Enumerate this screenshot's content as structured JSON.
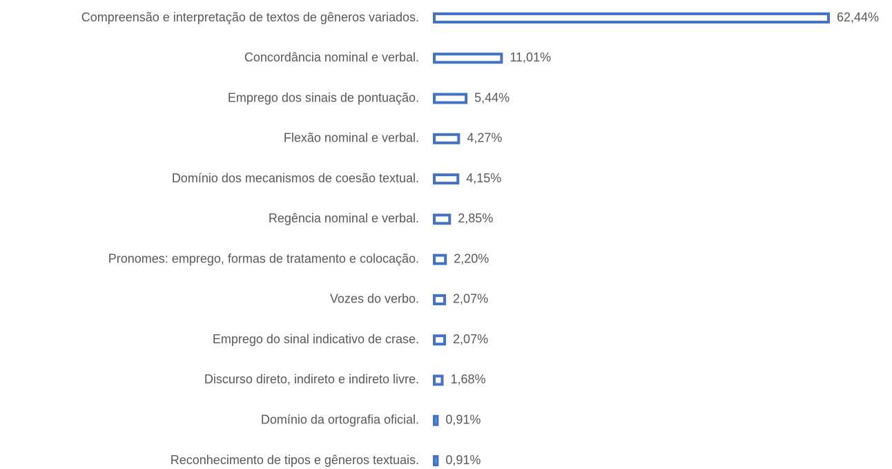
{
  "chart_data": {
    "type": "bar",
    "orientation": "horizontal",
    "categories": [
      "Compreensão e interpretação de textos de gêneros variados.",
      "Concordância nominal e verbal.",
      "Emprego dos sinais de pontuação.",
      "Flexão nominal e verbal.",
      "Domínio dos mecanismos de coesão textual.",
      "Regência nominal e verbal.",
      "Pronomes: emprego, formas de tratamento e colocação.",
      "Vozes do verbo.",
      "Emprego do sinal indicativo de crase.",
      "Discurso direto, indireto e indireto livre.",
      "Domínio da ortografia oficial.",
      "Reconhecimento de tipos e gêneros textuais."
    ],
    "values": [
      62.44,
      11.01,
      5.44,
      4.27,
      4.15,
      2.85,
      2.2,
      2.07,
      2.07,
      1.68,
      0.91,
      0.91
    ],
    "value_labels": [
      "62,44%",
      "11,01%",
      "5,44%",
      "4,27%",
      "4,15%",
      "2,85%",
      "2,20%",
      "2,07%",
      "2,07%",
      "1,68%",
      "0,91%",
      "0,91%"
    ],
    "color": "#4472c4"
  }
}
